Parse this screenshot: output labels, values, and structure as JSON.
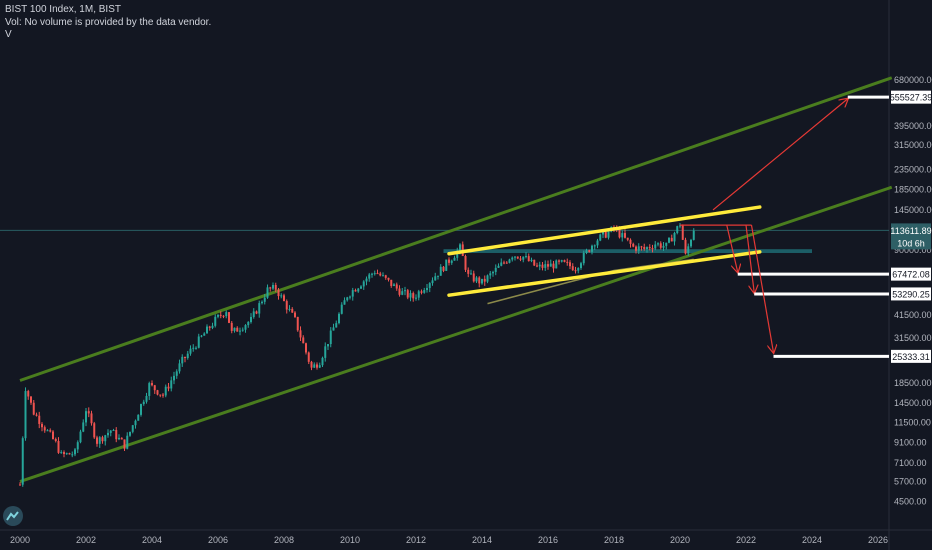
{
  "header": {
    "title": "BIST 100 Index, 1M, BIST",
    "volume_note": "Vol: No volume is provided by the data vendor.",
    "indicator": "V"
  },
  "colors": {
    "background": "#131722",
    "up_candle": "#26a69a",
    "down_candle": "#ef5350",
    "channel": "#4a7d1e",
    "wedge": "#ffeb3b",
    "target_arrow": "#e53935",
    "support_zone": "#1f6b73",
    "moving_average": "#8c8a4a",
    "current_price_line": "#2e6f73",
    "price_tag": "#2e5f66"
  },
  "chart_data": {
    "type": "candlestick",
    "title": "BIST 100 Index, 1M, BIST",
    "x_axis": {
      "type": "time",
      "range": [
        "2000-01",
        "2026-06"
      ],
      "ticks": [
        "2000",
        "2002",
        "2004",
        "2006",
        "2008",
        "2010",
        "2012",
        "2014",
        "2016",
        "2018",
        "2020",
        "2022",
        "2024",
        "2026"
      ]
    },
    "y_axis": {
      "scale": "log",
      "range": [
        4200,
        800000
      ],
      "ticks": [
        "680000.00",
        "395000.00",
        "315000.00",
        "235000.00",
        "185000.00",
        "145000.00",
        "90000.00",
        "41500.00",
        "31500.00",
        "18500.00",
        "14500.00",
        "11500.00",
        "9100.00",
        "7100.00",
        "5700.00",
        "4500.00"
      ]
    },
    "grid": false,
    "current_price": {
      "value": "113611.89",
      "countdown": "10d 6h"
    },
    "series": [
      {
        "type": "close_trend",
        "points": [
          [
            "2000-01",
            5500
          ],
          [
            "2000-03",
            17500
          ],
          [
            "2000-06",
            13000
          ],
          [
            "2001-02",
            9000
          ],
          [
            "2001-04",
            7800
          ],
          [
            "2001-09",
            8000
          ],
          [
            "2002-01",
            13500
          ],
          [
            "2002-05",
            9200
          ],
          [
            "2002-10",
            10500
          ],
          [
            "2003-03",
            8800
          ],
          [
            "2003-12",
            18000
          ],
          [
            "2004-05",
            16000
          ],
          [
            "2004-12",
            24000
          ],
          [
            "2005-12",
            39000
          ],
          [
            "2006-04",
            44000
          ],
          [
            "2006-06",
            33500
          ],
          [
            "2007-01",
            39000
          ],
          [
            "2007-07",
            56000
          ],
          [
            "2007-10",
            57000
          ],
          [
            "2008-05",
            39000
          ],
          [
            "2008-11",
            22000
          ],
          [
            "2009-02",
            24000
          ],
          [
            "2009-12",
            52500
          ],
          [
            "2010-10",
            70000
          ],
          [
            "2011-08",
            54000
          ],
          [
            "2011-12",
            51000
          ],
          [
            "2012-10",
            71000
          ],
          [
            "2013-05",
            92000
          ],
          [
            "2013-08",
            66000
          ],
          [
            "2014-01",
            61000
          ],
          [
            "2014-12",
            85000
          ],
          [
            "2015-04",
            83000
          ],
          [
            "2015-09",
            73000
          ],
          [
            "2016-06",
            76500
          ],
          [
            "2016-11",
            73000
          ],
          [
            "2017-06",
            100000
          ],
          [
            "2018-01",
            116000
          ],
          [
            "2018-08",
            93000
          ],
          [
            "2018-12",
            91000
          ],
          [
            "2019-04",
            97000
          ],
          [
            "2019-08",
            94000
          ],
          [
            "2020-01",
            123000
          ],
          [
            "2020-03",
            84000
          ],
          [
            "2020-06",
            116000
          ]
        ]
      }
    ],
    "annotations": {
      "long_term_channel": {
        "upper": [
          [
            "2000-01",
            19000
          ],
          [
            "2026-06",
            700000
          ]
        ],
        "lower": [
          [
            "2000-01",
            5700
          ],
          [
            "2026-06",
            190000
          ]
        ]
      },
      "wedge": {
        "upper": [
          [
            "2013-01",
            86000
          ],
          [
            "2022-06",
            150000
          ]
        ],
        "lower": [
          [
            "2013-01",
            52500
          ],
          [
            "2022-06",
            88000
          ]
        ]
      },
      "support_zone": {
        "from": "2012-11",
        "to": "2024-01",
        "low": 86800,
        "high": 90800
      },
      "moving_average": [
        [
          "2014-03",
          47500
        ],
        [
          "2016-06",
          60000
        ],
        [
          "2018-01",
          70500
        ],
        [
          "2020-06",
          80500
        ]
      ],
      "resistance_line": {
        "from": "2020-01",
        "to": "2022-03",
        "value": 121000
      },
      "targets": [
        {
          "label": "555527.39",
          "value": 555527.39,
          "arrow_from": [
            "2021-01",
            145000
          ],
          "arrow_to": [
            "2025-02",
            545000
          ]
        },
        {
          "label": "67472.08",
          "value": 67472.08,
          "arrow_from": [
            "2021-06",
            121000
          ],
          "arrow_to": [
            "2021-10",
            69000
          ]
        },
        {
          "label": "53290.25",
          "value": 53290.25,
          "arrow_from": [
            "2022-01",
            121000
          ],
          "arrow_to": [
            "2022-04",
            54000
          ]
        },
        {
          "label": "25333.31",
          "value": 25333.31,
          "arrow_from": [
            "2022-03",
            121000
          ],
          "arrow_to": [
            "2022-11",
            26500
          ]
        }
      ]
    }
  }
}
